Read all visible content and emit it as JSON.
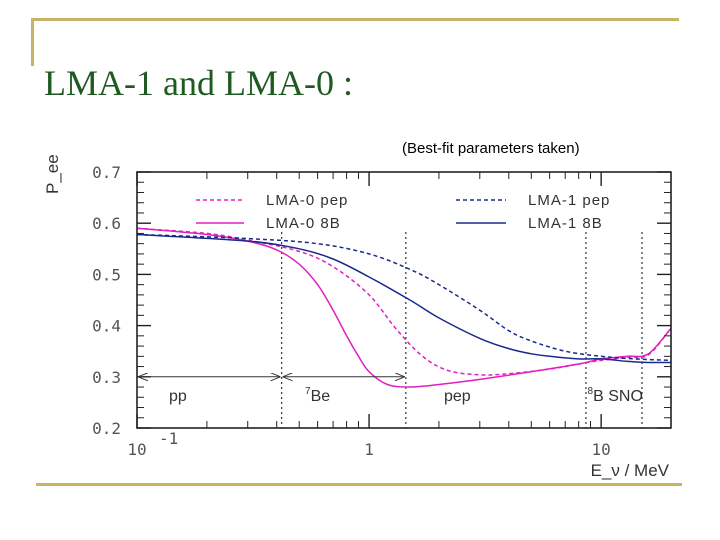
{
  "slide": {
    "title": "LMA-1 and LMA-0 :",
    "subtitle": "(Best-fit parameters taken)"
  },
  "chart_data": {
    "type": "line",
    "xscale": "log",
    "xlim": [
      0.1,
      20
    ],
    "ylim": [
      0.2,
      0.7
    ],
    "xlabel": "E_ν / MeV",
    "ylabel": "P_ee",
    "x_ticks": [
      {
        "value": 0.1,
        "label": "10",
        "sup": "-1"
      },
      {
        "value": 1,
        "label": "1",
        "sup": ""
      },
      {
        "value": 10,
        "label": "10",
        "sup": ""
      }
    ],
    "y_ticks": [
      {
        "value": 0.2,
        "label": "0.2"
      },
      {
        "value": 0.3,
        "label": "0.3"
      },
      {
        "value": 0.4,
        "label": "0.4"
      },
      {
        "value": 0.5,
        "label": "0.5"
      },
      {
        "value": 0.6,
        "label": "0.6"
      },
      {
        "value": 0.7,
        "label": "0.7"
      }
    ],
    "legend_position": "top",
    "series": [
      {
        "name": "LMA-0 pep",
        "color": "#e020c0",
        "dash": true,
        "x": [
          0.1,
          0.2,
          0.3,
          0.5,
          0.7,
          1.0,
          1.3,
          1.7,
          2.2,
          3.0,
          4.0,
          6.0,
          8.0,
          10.0,
          13.0,
          16.0,
          20.0
        ],
        "y": [
          0.59,
          0.58,
          0.567,
          0.545,
          0.515,
          0.46,
          0.395,
          0.34,
          0.312,
          0.304,
          0.306,
          0.315,
          0.325,
          0.332,
          0.338,
          0.343,
          0.395
        ]
      },
      {
        "name": "LMA-0 8B",
        "color": "#e020c0",
        "dash": false,
        "x": [
          0.1,
          0.2,
          0.3,
          0.4,
          0.5,
          0.6,
          0.7,
          0.8,
          0.9,
          1.0,
          1.2,
          1.5,
          2.0,
          3.0,
          5.0,
          8.0,
          10.0,
          13.0,
          16.0,
          20.0
        ],
        "y": [
          0.59,
          0.578,
          0.565,
          0.548,
          0.52,
          0.48,
          0.43,
          0.38,
          0.34,
          0.31,
          0.285,
          0.28,
          0.285,
          0.295,
          0.31,
          0.325,
          0.335,
          0.34,
          0.345,
          0.395
        ]
      },
      {
        "name": "LMA-1 pep",
        "color": "#1a2a8a",
        "dash": true,
        "x": [
          0.1,
          0.3,
          0.6,
          1.0,
          1.5,
          2.0,
          3.0,
          4.0,
          5.0,
          7.0,
          10.0,
          14.0,
          20.0
        ],
        "y": [
          0.578,
          0.57,
          0.56,
          0.54,
          0.51,
          0.48,
          0.43,
          0.39,
          0.37,
          0.35,
          0.34,
          0.335,
          0.332
        ]
      },
      {
        "name": "LMA-1 8B",
        "color": "#1a2a8a",
        "dash": false,
        "x": [
          0.1,
          0.3,
          0.5,
          0.7,
          1.0,
          1.5,
          2.0,
          3.0,
          4.0,
          5.0,
          6.0,
          8.0,
          10.0,
          13.0,
          16.0,
          20.0
        ],
        "y": [
          0.578,
          0.565,
          0.55,
          0.53,
          0.495,
          0.45,
          0.415,
          0.375,
          0.355,
          0.345,
          0.34,
          0.335,
          0.335,
          0.33,
          0.328,
          0.328
        ]
      }
    ],
    "vertical_lines": [
      0.42,
      1.44,
      8.6,
      15
    ],
    "regions": [
      {
        "label": "pp",
        "x": 0.15
      },
      {
        "label": "7",
        "suffix": "Be",
        "x": 0.6
      },
      {
        "label": "pep",
        "x": 2.4
      },
      {
        "label": "8",
        "suffix": "B SNO",
        "x": 11.5
      }
    ],
    "region_arrow_y": 0.3
  }
}
